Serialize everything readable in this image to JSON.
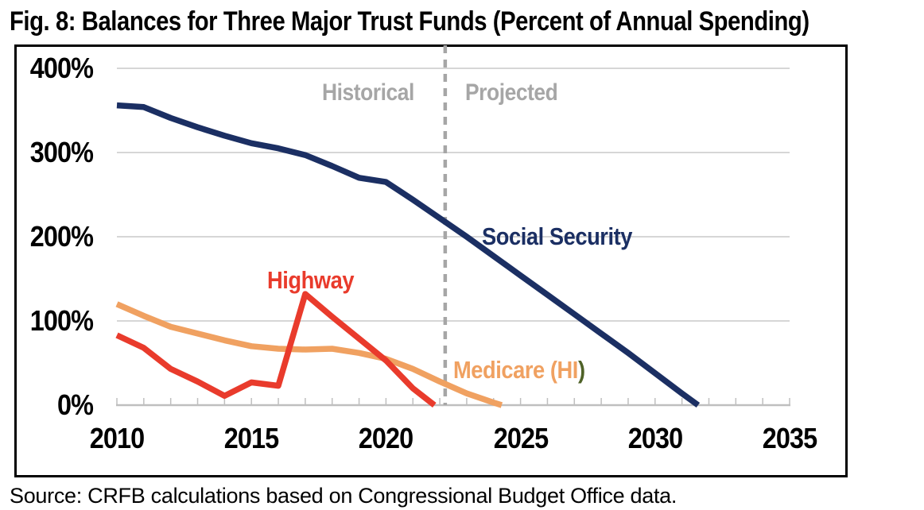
{
  "title": "Fig. 8: Balances for Three Major Trust Funds (Percent of Annual Spending)",
  "source": "Source: CRFB calculations based on Congressional Budget Office data.",
  "annotations": {
    "historical": "Historical",
    "projected": "Projected",
    "divider_year": 2022.2
  },
  "axes": {
    "y_tick_labels": [
      "0%",
      "100%",
      "200%",
      "300%",
      "400%"
    ],
    "y_tick_values": [
      0,
      100,
      200,
      300,
      400
    ],
    "x_tick_labels": [
      "2010",
      "2015",
      "2020",
      "2025",
      "2030",
      "2035"
    ],
    "x_tick_values": [
      2010,
      2015,
      2020,
      2025,
      2030,
      2035
    ],
    "x_minor_tick_step": 1,
    "x_range": [
      2010,
      2035
    ],
    "y_range": [
      0,
      400
    ],
    "grid": "horizontal-only"
  },
  "colors": {
    "social_security": "#1b2f63",
    "highway": "#e93b2c",
    "medicare": "#f0a161",
    "medicare_paren": "#4f6228",
    "annotation_gray": "#a6a6a6",
    "divider_dash": "#a6a6a6",
    "gridline": "#d6d6d6",
    "axis": "#bfbfbf",
    "border": "#000000"
  },
  "chart_data": {
    "type": "line",
    "title": "Fig. 8: Balances for Three Major Trust Funds (Percent of Annual Spending)",
    "xlabel": "",
    "ylabel": "Percent of annual spending",
    "xlim": [
      2010,
      2035
    ],
    "ylim": [
      0,
      400
    ],
    "legend_position": "inline-labels",
    "divider": {
      "x": 2022.2,
      "left_label": "Historical",
      "right_label": "Projected"
    },
    "series": [
      {
        "name": "Social Security",
        "label_text": "Social Security",
        "color": "#1b2f63",
        "points": [
          [
            2010,
            356
          ],
          [
            2011,
            354
          ],
          [
            2012,
            341
          ],
          [
            2013,
            330
          ],
          [
            2014,
            320
          ],
          [
            2015,
            311
          ],
          [
            2016,
            305
          ],
          [
            2017,
            297
          ],
          [
            2018,
            284
          ],
          [
            2019,
            270
          ],
          [
            2020,
            265
          ],
          [
            2021,
            244
          ],
          [
            2022,
            222
          ],
          [
            2023,
            200
          ],
          [
            2024,
            177
          ],
          [
            2025,
            154
          ],
          [
            2026,
            131
          ],
          [
            2027,
            108
          ],
          [
            2028,
            85
          ],
          [
            2029,
            62
          ],
          [
            2030,
            38
          ],
          [
            2031,
            14
          ],
          [
            2031.6,
            0
          ]
        ]
      },
      {
        "name": "Highway",
        "label_text": "Highway",
        "color": "#e93b2c",
        "points": [
          [
            2010,
            83
          ],
          [
            2011,
            68
          ],
          [
            2012,
            43
          ],
          [
            2013,
            28
          ],
          [
            2014,
            11
          ],
          [
            2015,
            27
          ],
          [
            2016,
            23
          ],
          [
            2017,
            132
          ],
          [
            2018,
            105
          ],
          [
            2019,
            79
          ],
          [
            2020,
            53
          ],
          [
            2021,
            20
          ],
          [
            2021.8,
            0
          ]
        ]
      },
      {
        "name": "Medicare (HI)",
        "label_text": "Medicare (HI",
        "label_paren": ")",
        "color": "#f0a161",
        "points": [
          [
            2010,
            120
          ],
          [
            2011,
            106
          ],
          [
            2012,
            93
          ],
          [
            2013,
            85
          ],
          [
            2014,
            77
          ],
          [
            2015,
            70
          ],
          [
            2016,
            67
          ],
          [
            2017,
            66
          ],
          [
            2018,
            67
          ],
          [
            2019,
            62
          ],
          [
            2020,
            55
          ],
          [
            2021,
            43
          ],
          [
            2022,
            28
          ],
          [
            2023,
            14
          ],
          [
            2024,
            3
          ],
          [
            2024.3,
            0
          ]
        ]
      }
    ]
  }
}
